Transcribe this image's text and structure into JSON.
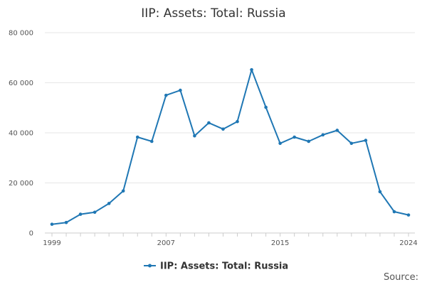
{
  "chart_data": {
    "type": "line",
    "title": "IIP: Assets: Total: Russia",
    "xlabel": "",
    "ylabel": "",
    "x": [
      1999,
      2000,
      2001,
      2002,
      2003,
      2004,
      2005,
      2006,
      2007,
      2008,
      2009,
      2010,
      2011,
      2012,
      2013,
      2014,
      2015,
      2016,
      2017,
      2018,
      2019,
      2020,
      2021,
      2022,
      2023,
      2024
    ],
    "series": [
      {
        "name": "IIP: Assets: Total: Russia",
        "color": "#1f77b4",
        "values": [
          3500,
          4200,
          7500,
          8300,
          11800,
          16800,
          38300,
          36600,
          55000,
          57000,
          38800,
          44000,
          41500,
          44500,
          65200,
          50200,
          35800,
          38300,
          36600,
          39200,
          41000,
          35800,
          37000,
          16500,
          8500,
          7200
        ]
      }
    ],
    "x_ticks": [
      "1999",
      "2007",
      "2015",
      "2024"
    ],
    "y_ticks": [
      "0",
      "20 000",
      "40 000",
      "60 000",
      "80 000"
    ],
    "xlim": [
      1999,
      2024
    ],
    "ylim": [
      0,
      80000
    ],
    "grid": "horizontal",
    "legend_position": "bottom-center"
  },
  "legend": {
    "label": "IIP: Assets: Total: Russia"
  },
  "footer": {
    "source_label": "Source:"
  }
}
